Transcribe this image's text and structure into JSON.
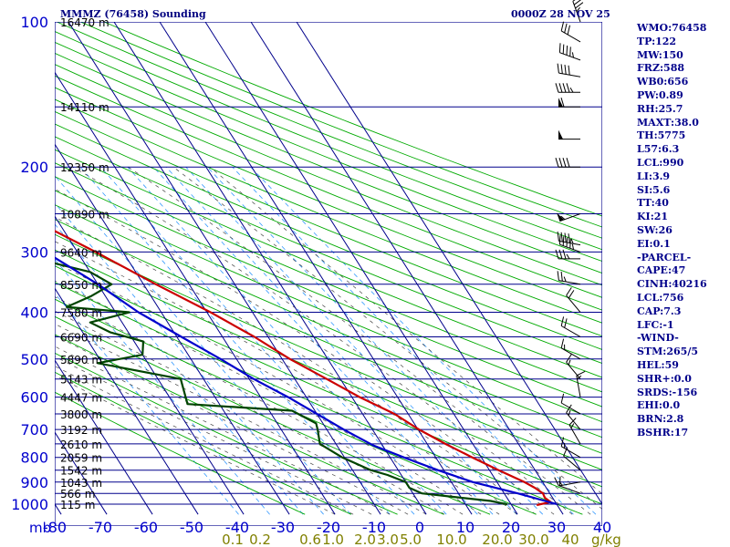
{
  "header": {
    "left": "MMMZ (76458) Sounding",
    "right": "0000Z 28 NOV 25"
  },
  "indices": [
    "WMO:76458",
    "TP:122",
    "MW:150",
    "FRZ:588",
    "WB0:656",
    "PW:0.89",
    "RH:25.7",
    "MAXT:38.0",
    "TH:5775",
    "L57:6.3",
    "LCL:990",
    "LI:3.9",
    "SI:5.6",
    "TT:40",
    "KI:21",
    "SW:26",
    "EI:0.1",
    "-PARCEL-",
    "CAPE:47",
    "CINH:40216",
    "LCL:756",
    "CAP:7.3",
    "LFC:-1",
    "-WIND-",
    "STM:265/5",
    "HEL:59",
    "SHR+:0.0",
    "SRDS:-156",
    "EHI:0.0",
    "BRN:2.8",
    "BSHR:17"
  ],
  "colors": {
    "axis_text": "#0000cd",
    "isobar": "#00008b",
    "isotherm": "#00008b",
    "dry_adiabat": "#00aa00",
    "moist_adiabat": "#444444",
    "mixing_ratio": "#3399ff",
    "temperature": "#cc0000",
    "dewpoint": "#004400",
    "parcel": "#0000cc",
    "mixing_label": "#808000",
    "wind_barb": "#000000"
  },
  "chart_data": {
    "type": "skew-t",
    "ylabel": "mb",
    "xlabel": "",
    "pressure_ticks": [
      100,
      200,
      300,
      400,
      500,
      600,
      700,
      800,
      900,
      1000
    ],
    "isobars": [
      100,
      150,
      200,
      250,
      300,
      350,
      400,
      450,
      500,
      550,
      600,
      650,
      700,
      750,
      800,
      850,
      900,
      950,
      1000
    ],
    "temperature_ticks": [
      -80,
      -70,
      -60,
      -50,
      -40,
      -30,
      -20,
      -10,
      0,
      10,
      20,
      30,
      40
    ],
    "xlim": [
      -80,
      40
    ],
    "ylim": [
      1050,
      100
    ],
    "mixing_ratio_label": "g/kg",
    "mixing_ratio_labels": [
      {
        "t": -41,
        "label": "0.1"
      },
      {
        "t": -35,
        "label": "0.2"
      },
      {
        "t": -24,
        "label": "0.6"
      },
      {
        "t": -19,
        "label": "1.0"
      },
      {
        "t": -12,
        "label": "2.0"
      },
      {
        "t": -7,
        "label": "3.0"
      },
      {
        "t": -2,
        "label": "5.0"
      },
      {
        "t": 7,
        "label": "10.0"
      },
      {
        "t": 17,
        "label": "20.0"
      },
      {
        "t": 25,
        "label": "30.0"
      },
      {
        "t": 33,
        "label": "40"
      }
    ],
    "heights": [
      {
        "p": 100,
        "label": "16470 m"
      },
      {
        "p": 150,
        "label": "14110 m"
      },
      {
        "p": 200,
        "label": "12350 m"
      },
      {
        "p": 250,
        "label": "10890 m"
      },
      {
        "p": 300,
        "label": "9640 m"
      },
      {
        "p": 350,
        "label": "8550 m"
      },
      {
        "p": 400,
        "label": "7580 m"
      },
      {
        "p": 450,
        "label": "6690 m"
      },
      {
        "p": 500,
        "label": "5890 m"
      },
      {
        "p": 550,
        "label": "5143 m"
      },
      {
        "p": 600,
        "label": "4447 m"
      },
      {
        "p": 650,
        "label": "3800 m"
      },
      {
        "p": 700,
        "label": "3192 m"
      },
      {
        "p": 750,
        "label": "2610 m"
      },
      {
        "p": 800,
        "label": "2059 m"
      },
      {
        "p": 850,
        "label": "1542 m"
      },
      {
        "p": 900,
        "label": "1043 m"
      },
      {
        "p": 950,
        "label": "566 m"
      },
      {
        "p": 1000,
        "label": "115 m"
      }
    ],
    "series": [
      {
        "role": "temperature",
        "points": [
          [
            1005,
            25.5
          ],
          [
            1000,
            26.5
          ],
          [
            990,
            29.0
          ],
          [
            970,
            28.3
          ],
          [
            950,
            28.5
          ],
          [
            925,
            27.5
          ],
          [
            900,
            26.0
          ],
          [
            850,
            22.0
          ],
          [
            800,
            18.0
          ],
          [
            750,
            14.0
          ],
          [
            700,
            10.2
          ],
          [
            650,
            7.0
          ],
          [
            600,
            1.7
          ],
          [
            550,
            -3.0
          ],
          [
            500,
            -8.3
          ],
          [
            450,
            -13.0
          ],
          [
            400,
            -19.2
          ],
          [
            350,
            -27.3
          ],
          [
            300,
            -36.0
          ],
          [
            250,
            -47.0
          ],
          [
            200,
            -58.0
          ],
          [
            150,
            -71.0
          ],
          [
            130,
            -76.0
          ],
          [
            120,
            -79.0
          ],
          [
            100,
            -80.5
          ]
        ]
      },
      {
        "role": "dewpoint",
        "points": [
          [
            1005,
            18.5
          ],
          [
            1000,
            19.0
          ],
          [
            985,
            16.0
          ],
          [
            970,
            10.0
          ],
          [
            950,
            2.0
          ],
          [
            925,
            0.0
          ],
          [
            900,
            0.0
          ],
          [
            870,
            -3.0
          ],
          [
            850,
            -6.0
          ],
          [
            800,
            -10.5
          ],
          [
            750,
            -13.5
          ],
          [
            700,
            -12.0
          ],
          [
            680,
            -11.5
          ],
          [
            640,
            -15.0
          ],
          [
            620,
            -37.0
          ],
          [
            550,
            -35.0
          ],
          [
            510,
            -51.0
          ],
          [
            490,
            -40.0
          ],
          [
            460,
            -38.0
          ],
          [
            440,
            -44.0
          ],
          [
            420,
            -47.0
          ],
          [
            400,
            -37.0
          ],
          [
            390,
            -50.0
          ],
          [
            370,
            -43.0
          ],
          [
            350,
            -37.0
          ],
          [
            330,
            -40.0
          ],
          [
            310,
            -50.0
          ],
          [
            295,
            -48.0
          ],
          [
            280,
            -49.0
          ],
          [
            260,
            -56.0
          ],
          [
            240,
            -61.0
          ],
          [
            230,
            -62.0
          ],
          [
            200,
            -67.0
          ],
          [
            190,
            -71.0
          ],
          [
            170,
            -76.0
          ],
          [
            150,
            -80.0
          ],
          [
            140,
            -82.0
          ],
          [
            130,
            -82.0
          ],
          [
            120,
            -83.0
          ]
        ]
      },
      {
        "role": "parcel",
        "points": [
          [
            1000,
            30.0
          ],
          [
            950,
            23.0
          ],
          [
            900,
            14.7
          ],
          [
            850,
            8.7
          ],
          [
            800,
            3.0
          ],
          [
            756,
            -2.0
          ],
          [
            700,
            -6.3
          ],
          [
            650,
            -10.0
          ],
          [
            600,
            -14.0
          ],
          [
            550,
            -19.0
          ],
          [
            500,
            -23.5
          ],
          [
            450,
            -29.0
          ],
          [
            400,
            -35.0
          ],
          [
            350,
            -40.0
          ],
          [
            300,
            -47.0
          ],
          [
            250,
            -55.0
          ],
          [
            200,
            -63.0
          ],
          [
            160,
            -73.0
          ],
          [
            145,
            -79.0
          ]
        ]
      }
    ],
    "wind_barbs": [
      {
        "p": 100,
        "dir": 340,
        "spd": 35
      },
      {
        "p": 110,
        "dir": 300,
        "spd": 30
      },
      {
        "p": 120,
        "dir": 290,
        "spd": 45
      },
      {
        "p": 130,
        "dir": 280,
        "spd": 40
      },
      {
        "p": 140,
        "dir": 270,
        "spd": 45
      },
      {
        "p": 150,
        "dir": 270,
        "spd": 60
      },
      {
        "p": 175,
        "dir": 270,
        "spd": 50
      },
      {
        "p": 200,
        "dir": 270,
        "spd": 40
      },
      {
        "p": 250,
        "dir": 250,
        "spd": 55
      },
      {
        "p": 290,
        "dir": 280,
        "spd": 45
      },
      {
        "p": 300,
        "dir": 290,
        "spd": 45
      },
      {
        "p": 310,
        "dir": 270,
        "spd": 35
      },
      {
        "p": 350,
        "dir": 280,
        "spd": 25
      },
      {
        "p": 400,
        "dir": 320,
        "spd": 20
      },
      {
        "p": 450,
        "dir": 300,
        "spd": 20
      },
      {
        "p": 500,
        "dir": 300,
        "spd": 15
      },
      {
        "p": 550,
        "dir": 320,
        "spd": 15
      },
      {
        "p": 600,
        "dir": 350,
        "spd": 15
      },
      {
        "p": 650,
        "dir": 300,
        "spd": 10
      },
      {
        "p": 700,
        "dir": 320,
        "spd": 15
      },
      {
        "p": 750,
        "dir": 330,
        "spd": 15
      },
      {
        "p": 800,
        "dir": 300,
        "spd": 15
      },
      {
        "p": 850,
        "dir": 310,
        "spd": 10
      },
      {
        "p": 900,
        "dir": 260,
        "spd": 15
      },
      {
        "p": 950,
        "dir": 290,
        "spd": 10
      }
    ]
  }
}
